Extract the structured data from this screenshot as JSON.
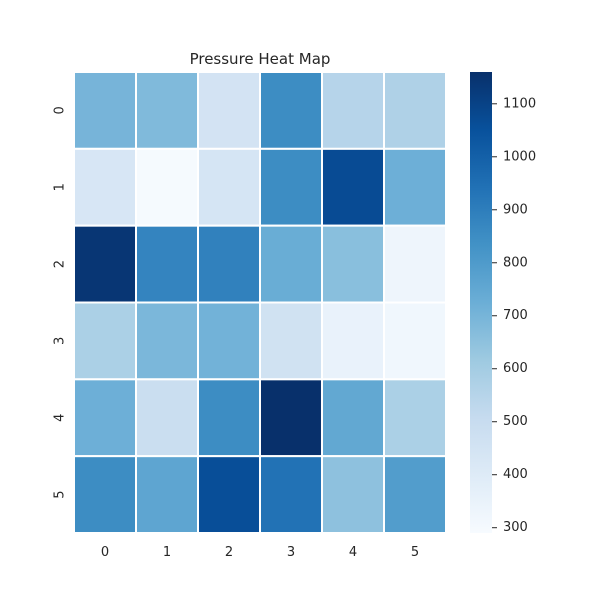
{
  "chart_data": {
    "type": "heatmap",
    "title": "Pressure Heat Map",
    "xlabel": "",
    "ylabel": "",
    "x_categories": [
      "0",
      "1",
      "2",
      "3",
      "4",
      "5"
    ],
    "y_categories": [
      "0",
      "1",
      "2",
      "3",
      "4",
      "5"
    ],
    "values": [
      [
        700,
        680,
        450,
        850,
        550,
        570
      ],
      [
        430,
        300,
        440,
        850,
        1070,
        720
      ],
      [
        1140,
        880,
        890,
        730,
        660,
        330
      ],
      [
        580,
        690,
        710,
        460,
        350,
        320
      ],
      [
        720,
        490,
        850,
        1160,
        750,
        580
      ],
      [
        850,
        760,
        1060,
        940,
        650,
        790
      ]
    ],
    "colorbar": {
      "min": 290,
      "max": 1160,
      "ticks": [
        300,
        400,
        500,
        600,
        700,
        800,
        900,
        1000,
        1100
      ]
    },
    "colormap": "Blues",
    "colormap_stops": [
      "#f7fbff",
      "#deebf7",
      "#c6dbef",
      "#9ecae1",
      "#6baed6",
      "#4292c6",
      "#2171b5",
      "#08519c",
      "#08306b"
    ],
    "cell_border_color": "#ffffff",
    "grid": false
  }
}
